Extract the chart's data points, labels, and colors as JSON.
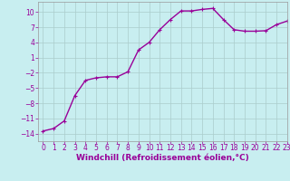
{
  "x": [
    0,
    1,
    2,
    3,
    4,
    5,
    6,
    7,
    8,
    9,
    10,
    11,
    12,
    13,
    14,
    15,
    16,
    17,
    18,
    19,
    20,
    21,
    22,
    23
  ],
  "y": [
    -13.5,
    -13.0,
    -11.5,
    -6.5,
    -3.5,
    -3.0,
    -2.8,
    -2.8,
    -1.8,
    2.5,
    4.0,
    6.5,
    8.5,
    10.2,
    10.2,
    10.5,
    10.7,
    8.5,
    6.5,
    6.2,
    6.2,
    6.3,
    7.5,
    8.2
  ],
  "line_color": "#990099",
  "marker": "+",
  "bg_color": "#c8eef0",
  "grid_color": "#aacccc",
  "xlabel": "Windchill (Refroidissement éolien,°C)",
  "xlabel_color": "#990099",
  "tick_color": "#990099",
  "ylim": [
    -15.5,
    12
  ],
  "xlim": [
    -0.5,
    23
  ],
  "yticks": [
    -14,
    -11,
    -8,
    -5,
    -2,
    1,
    4,
    7,
    10
  ],
  "xticks": [
    0,
    1,
    2,
    3,
    4,
    5,
    6,
    7,
    8,
    9,
    10,
    11,
    12,
    13,
    14,
    15,
    16,
    17,
    18,
    19,
    20,
    21,
    22,
    23
  ],
  "tick_fontsize": 5.5,
  "xlabel_fontsize": 6.5,
  "linewidth": 1.0,
  "markersize": 3,
  "markeredgewidth": 0.8
}
